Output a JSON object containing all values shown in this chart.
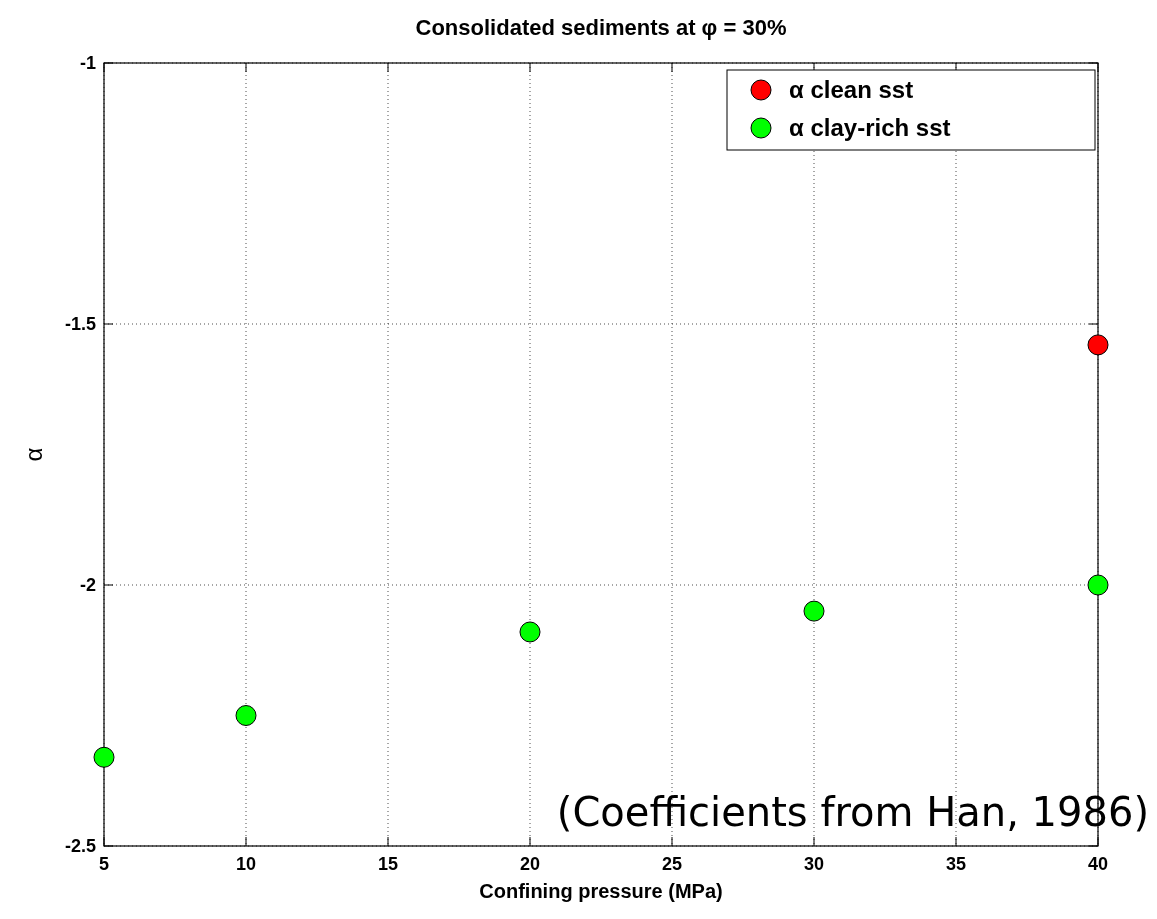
{
  "chart_data": {
    "type": "scatter",
    "title": "Consolidated sediments at φ = 30%",
    "xlabel": "Confining pressure (MPa)",
    "ylabel": "α",
    "series": [
      {
        "name": "α clean sst",
        "color": "#ff0000",
        "x": [
          40
        ],
        "values": [
          -1.54
        ]
      },
      {
        "name": "α clay-rich sst",
        "color": "#00ff00",
        "x": [
          5,
          10,
          20,
          30,
          40
        ],
        "values": [
          -2.33,
          -2.25,
          -2.09,
          -2.05,
          -2.0
        ]
      }
    ],
    "xlim": [
      5,
      40
    ],
    "xticks": [
      5,
      10,
      15,
      20,
      25,
      30,
      35,
      40
    ],
    "ylim": [
      -2.5,
      -1
    ],
    "yticks": [
      -2.5,
      -2,
      -1.5,
      -1
    ],
    "grid": true,
    "legend": "top right",
    "marker": "circle",
    "annotations": [
      "(Coefficients from Han, 1986)"
    ]
  }
}
